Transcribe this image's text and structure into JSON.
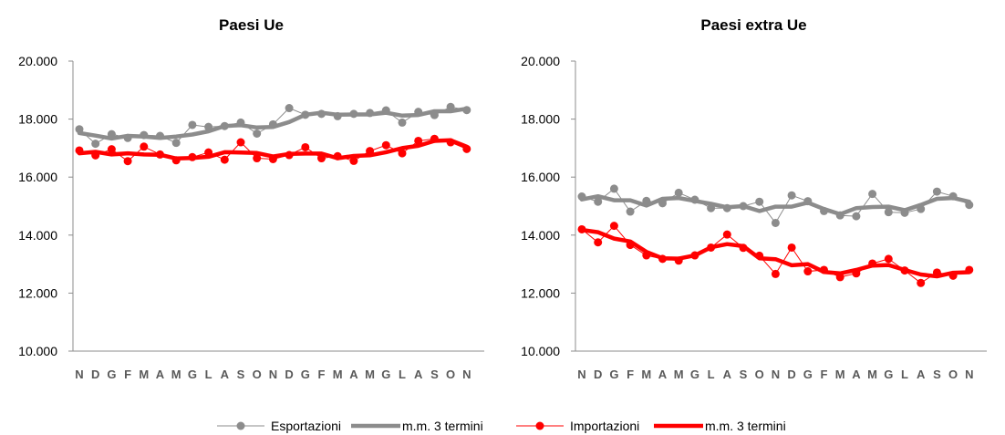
{
  "chart_data": [
    {
      "type": "line",
      "title": "Paesi Ue",
      "xlabel": "",
      "ylabel": "",
      "ylim": [
        10000,
        20000
      ],
      "yticks": [
        "10.000",
        "12.000",
        "14.000",
        "16.000",
        "18.000",
        "20.000"
      ],
      "categories": [
        "N",
        "D",
        "G",
        "F",
        "M",
        "A",
        "M",
        "G",
        "L",
        "A",
        "S",
        "O",
        "N",
        "D",
        "G",
        "F",
        "M",
        "A",
        "M",
        "G",
        "L",
        "A",
        "S",
        "O",
        "N"
      ],
      "series": [
        {
          "name": "Esportazioni",
          "color": "#8c8c8c",
          "style": "thin-markers",
          "values": [
            17650,
            17150,
            17480,
            17350,
            17450,
            17420,
            17180,
            17800,
            17730,
            17760,
            17880,
            17500,
            17820,
            18380,
            18150,
            18180,
            18100,
            18180,
            18210,
            18300,
            17880,
            18250,
            18140,
            18420,
            18310
          ]
        },
        {
          "name": "m.m. 3 termini",
          "color": "#8c8c8c",
          "style": "thick",
          "values": [
            17520,
            17430,
            17330,
            17420,
            17400,
            17350,
            17400,
            17470,
            17580,
            17760,
            17790,
            17710,
            17730,
            17900,
            18150,
            18220,
            18150,
            18160,
            18160,
            18220,
            18120,
            18140,
            18270,
            18270,
            18360
          ]
        },
        {
          "name": "Importazioni",
          "color": "#ff0000",
          "style": "thin-markers",
          "values": [
            16920,
            16750,
            16960,
            16550,
            17050,
            16780,
            16580,
            16690,
            16850,
            16600,
            17200,
            16650,
            16620,
            16760,
            17030,
            16650,
            16720,
            16560,
            16900,
            17100,
            16820,
            17250,
            17320,
            17200,
            16970
          ]
        },
        {
          "name": "m.m. 3 termini",
          "color": "#ff0000",
          "style": "thick",
          "values": [
            16820,
            16870,
            16780,
            16820,
            16780,
            16770,
            16640,
            16660,
            16700,
            16860,
            16850,
            16830,
            16710,
            16800,
            16810,
            16810,
            16650,
            16730,
            16750,
            16860,
            17000,
            17080,
            17250,
            17270,
            17050
          ]
        }
      ]
    },
    {
      "type": "line",
      "title": "Paesi extra Ue",
      "xlabel": "",
      "ylabel": "",
      "ylim": [
        10000,
        20000
      ],
      "yticks": [
        "10.000",
        "12.000",
        "14.000",
        "16.000",
        "18.000",
        "20.000"
      ],
      "categories": [
        "N",
        "D",
        "G",
        "F",
        "M",
        "A",
        "M",
        "G",
        "L",
        "A",
        "S",
        "O",
        "N",
        "D",
        "G",
        "F",
        "M",
        "A",
        "M",
        "G",
        "L",
        "A",
        "S",
        "O",
        "N"
      ],
      "series": [
        {
          "name": "Esportazioni",
          "color": "#8c8c8c",
          "style": "thin-markers",
          "values": [
            15330,
            15150,
            15600,
            14810,
            15180,
            15100,
            15460,
            15220,
            14930,
            14930,
            15000,
            15150,
            14420,
            15370,
            15170,
            14830,
            14680,
            14650,
            15420,
            14790,
            14770,
            14900,
            15500,
            15340,
            15040
          ]
        },
        {
          "name": "m.m. 3 termini",
          "color": "#8c8c8c",
          "style": "thick",
          "values": [
            15230,
            15340,
            15200,
            15200,
            15020,
            15250,
            15280,
            15180,
            15080,
            14960,
            15000,
            14830,
            14980,
            14980,
            15120,
            14900,
            14720,
            14930,
            14970,
            14980,
            14860,
            15040,
            15250,
            15280,
            15150
          ]
        },
        {
          "name": "Importazioni",
          "color": "#ff0000",
          "style": "thin-markers",
          "values": [
            14200,
            13750,
            14320,
            13660,
            13300,
            13180,
            13120,
            13300,
            13570,
            14020,
            13560,
            13290,
            12660,
            13570,
            12750,
            12800,
            12550,
            12680,
            13020,
            13180,
            12780,
            12350,
            12710,
            12600,
            12800
          ]
        },
        {
          "name": "m.m. 3 termini",
          "color": "#ff0000",
          "style": "thick",
          "values": [
            14180,
            14100,
            13880,
            13780,
            13420,
            13200,
            13190,
            13300,
            13580,
            13690,
            13620,
            13200,
            13170,
            12960,
            13000,
            12730,
            12680,
            12800,
            12950,
            12970,
            12800,
            12640,
            12580,
            12700,
            12720
          ]
        }
      ]
    }
  ],
  "legend": {
    "items": [
      {
        "label": "Esportazioni",
        "color": "#8c8c8c",
        "style": "thin-markers"
      },
      {
        "label": "m.m. 3 termini",
        "color": "#8c8c8c",
        "style": "thick"
      },
      {
        "label": "Importazioni",
        "color": "#ff0000",
        "style": "thin-markers"
      },
      {
        "label": "m.m. 3 termini",
        "color": "#ff0000",
        "style": "thick"
      }
    ]
  }
}
